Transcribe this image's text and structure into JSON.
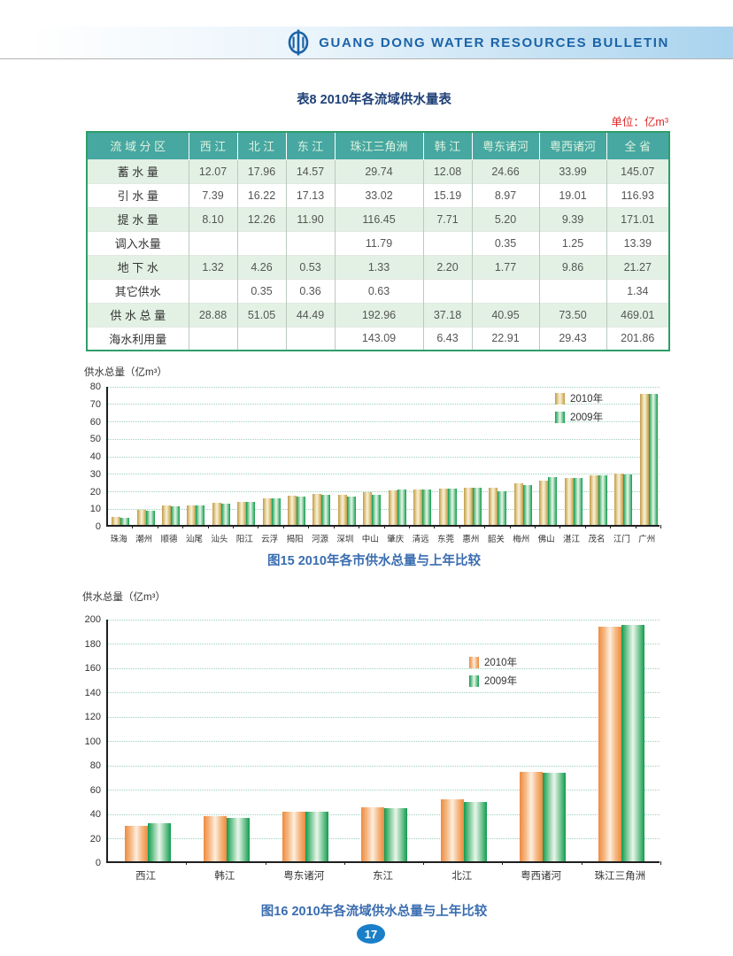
{
  "header": {
    "title": "GUANG DONG WATER RESOURCES BULLETIN"
  },
  "table8": {
    "title": "表8  2010年各流域供水量表",
    "unit": "单位：亿m³",
    "columns": [
      "流 域 分 区",
      "西 江",
      "北 江",
      "东 江",
      "珠江三角洲",
      "韩 江",
      "粤东诸河",
      "粤西诸河",
      "全 省"
    ],
    "rows": [
      {
        "label": "蓄 水 量",
        "values": [
          "12.07",
          "17.96",
          "14.57",
          "29.74",
          "12.08",
          "24.66",
          "33.99",
          "145.07"
        ]
      },
      {
        "label": "引 水 量",
        "values": [
          "7.39",
          "16.22",
          "17.13",
          "33.02",
          "15.19",
          "8.97",
          "19.01",
          "116.93"
        ]
      },
      {
        "label": "提 水 量",
        "values": [
          "8.10",
          "12.26",
          "11.90",
          "116.45",
          "7.71",
          "5.20",
          "9.39",
          "171.01"
        ]
      },
      {
        "label": "调入水量",
        "values": [
          "",
          "",
          "",
          "11.79",
          "",
          "0.35",
          "1.25",
          "13.39"
        ]
      },
      {
        "label": "地 下 水",
        "values": [
          "1.32",
          "4.26",
          "0.53",
          "1.33",
          "2.20",
          "1.77",
          "9.86",
          "21.27"
        ]
      },
      {
        "label": "其它供水",
        "values": [
          "",
          "0.35",
          "0.36",
          "0.63",
          "",
          "",
          "",
          "1.34"
        ]
      },
      {
        "label": "供 水 总 量",
        "values": [
          "28.88",
          "51.05",
          "44.49",
          "192.96",
          "37.18",
          "40.95",
          "73.50",
          "469.01"
        ]
      },
      {
        "label": "海水利用量",
        "values": [
          "",
          "",
          "",
          "143.09",
          "6.43",
          "22.91",
          "29.43",
          "201.86"
        ]
      }
    ]
  },
  "chart_data": [
    {
      "type": "bar",
      "title": "图15  2010年各市供水总量与上年比较",
      "ylabel": "供水总量（亿m³）",
      "xlabel": "",
      "ylim": [
        0,
        80
      ],
      "ytick": 10,
      "grid": "dotted",
      "legend_position": "top-right-inside",
      "categories": [
        "珠海",
        "潮州",
        "顺德",
        "汕尾",
        "汕头",
        "阳江",
        "云浮",
        "揭阳",
        "河源",
        "深圳",
        "中山",
        "肇庆",
        "清远",
        "东莞",
        "惠州",
        "韶关",
        "梅州",
        "佛山",
        "湛江",
        "茂名",
        "江门",
        "广州"
      ],
      "series": [
        {
          "name": "2010年",
          "values": [
            4.7,
            8.4,
            11.0,
            11.2,
            12.6,
            13.4,
            15.3,
            16.8,
            17.5,
            17.4,
            18.6,
            19.8,
            20.2,
            21.0,
            21.4,
            21.3,
            23.6,
            25.3,
            26.8,
            28.3,
            29.5,
            74.8
          ],
          "colors": {
            "edge": "#C09A48",
            "mid": "#E4CF95",
            "light": "#F9F1DA"
          }
        },
        {
          "name": "2009年",
          "values": [
            4.2,
            7.9,
            10.6,
            11.2,
            12.1,
            13.3,
            15.2,
            16.2,
            17.4,
            16.2,
            17.0,
            20.2,
            20.2,
            20.6,
            21.4,
            19.0,
            22.8,
            27.3,
            26.8,
            28.2,
            29.0,
            74.9
          ],
          "colors": {
            "edge": "#0F9B4E",
            "mid": "#8CCFA3",
            "light": "#EAF6EC"
          }
        }
      ]
    },
    {
      "type": "bar",
      "title": "图16  2010年各流域供水总量与上年比较",
      "ylabel": "供水总量（亿m³）",
      "xlabel": "",
      "ylim": [
        0,
        200
      ],
      "ytick": 20,
      "grid": "dotted",
      "legend_position": "top-right-inside",
      "categories": [
        "西江",
        "韩江",
        "粤东诸河",
        "东江",
        "北江",
        "粤西诸河",
        "珠江三角洲"
      ],
      "series": [
        {
          "name": "2010年",
          "values": [
            28.88,
            37.18,
            40.95,
            44.49,
            51.05,
            73.5,
            192.96
          ],
          "colors": {
            "edge": "#EE8A3E",
            "mid": "#F6BD8B",
            "light": "#FDEFE0"
          }
        },
        {
          "name": "2009年",
          "values": [
            31.0,
            36.0,
            40.5,
            43.5,
            49.0,
            72.5,
            194.0
          ],
          "colors": {
            "edge": "#0F9B4E",
            "mid": "#8CCFA3",
            "light": "#EAF6EC"
          }
        }
      ]
    }
  ],
  "page_number": "17",
  "colors": {
    "header_text_blue": "#1b63a8",
    "header_gradient_blue": "#a9d3ee",
    "table_header_bg": "#47a7a1",
    "table_row_green": "#e2f1e3",
    "table_border_green": "#2f9e68",
    "caption_blue": "#3a6db0",
    "unit_red": "#e02525",
    "gridline_green": "#9ed1b8",
    "page_number_bg": "#1a7fc8"
  }
}
